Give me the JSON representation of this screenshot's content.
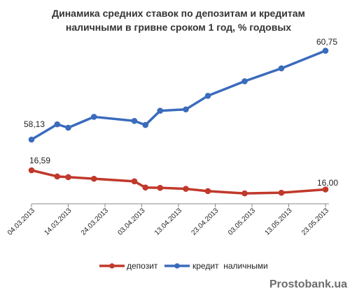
{
  "chart_data": {
    "type": "line",
    "title_lines": [
      "Динамика средних ставок по депозитам и кредитам",
      "наличными в гривне сроком 1 год, % годовых"
    ],
    "x": [
      "2013-03-04",
      "2013-03-11",
      "2013-03-14",
      "2013-03-21",
      "2013-04-01",
      "2013-04-04",
      "2013-04-08",
      "2013-04-15",
      "2013-04-21",
      "2013-05-01",
      "2013-05-11",
      "2013-05-23"
    ],
    "x_tick_labels": [
      "04.03.2013",
      "14.03.2013",
      "24.03.2013",
      "03.04.2013",
      "13.04.2013",
      "23.04.2013",
      "03.05.2013",
      "13.05.2013",
      "23.05.2013"
    ],
    "series": [
      {
        "name": "депозит",
        "color": "#c0392b",
        "values": [
          16.59,
          16.4,
          16.38,
          16.33,
          16.25,
          16.06,
          16.05,
          16.02,
          15.95,
          15.88,
          15.9,
          16.0
        ],
        "labels": {
          "first": "16,59",
          "last": "16,00"
        }
      },
      {
        "name": "кредит  наличными",
        "color": "#3a6bbd",
        "values": [
          58.13,
          58.58,
          58.48,
          58.8,
          58.68,
          58.56,
          58.98,
          59.02,
          59.42,
          59.85,
          60.23,
          60.75
        ],
        "labels": {
          "first": "58,13",
          "last": "60,75"
        }
      }
    ],
    "grid": false,
    "legend_position": "bottom"
  },
  "watermark": "Prostobank.ua"
}
